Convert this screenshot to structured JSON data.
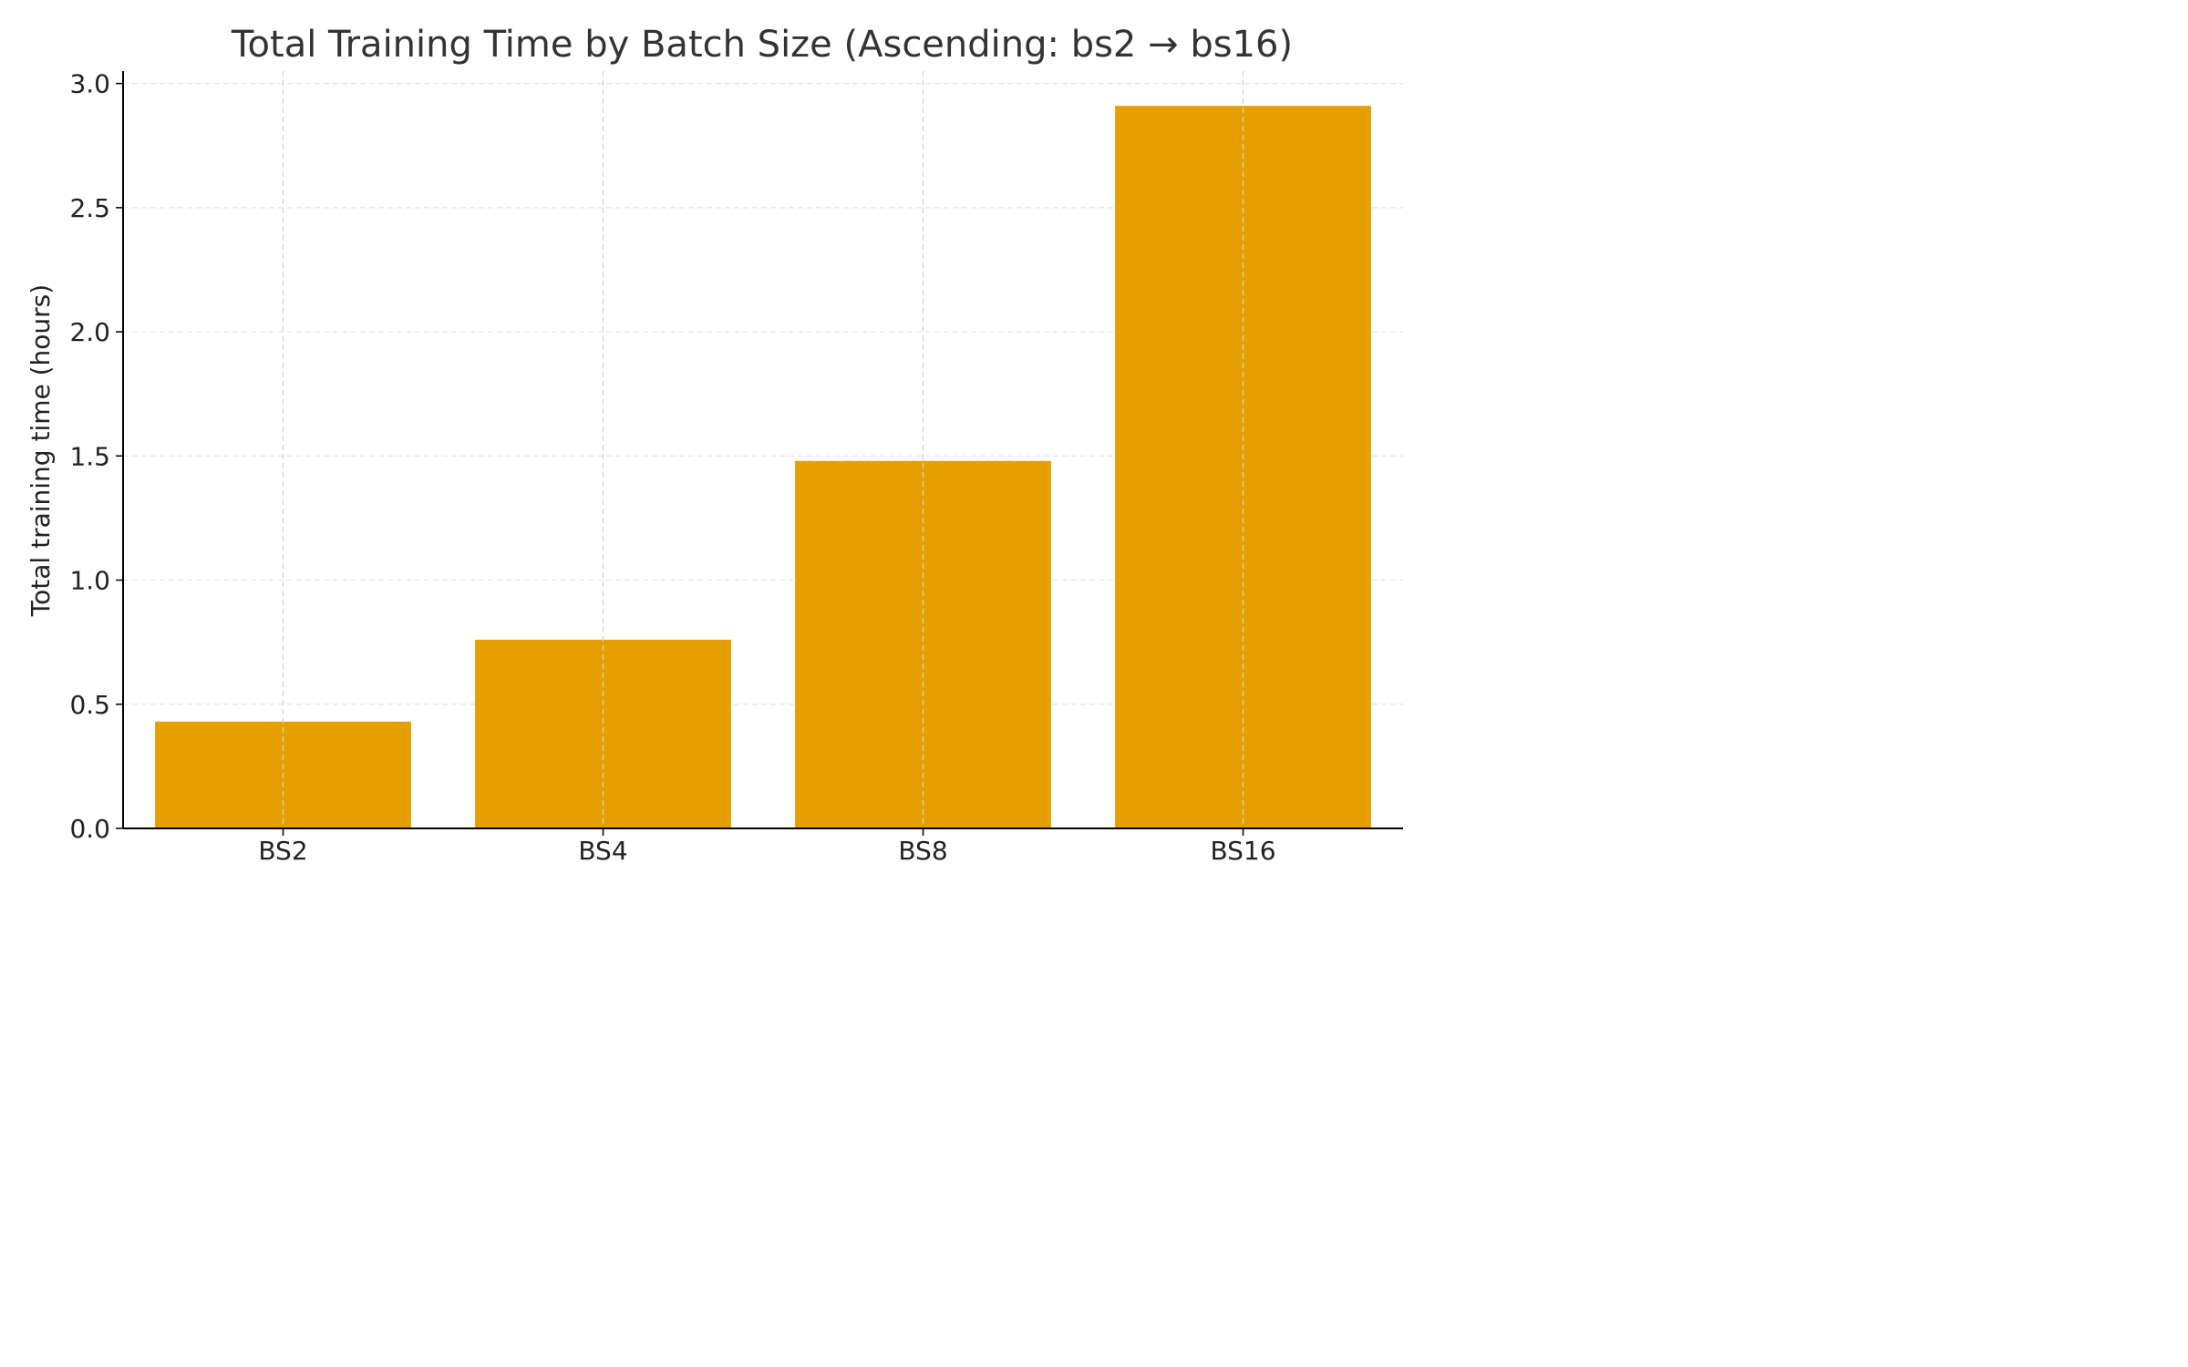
{
  "chart_data": {
    "type": "bar",
    "title": "Total Training Time by Batch Size (Ascending: bs2 → bs16)",
    "xlabel": "",
    "ylabel": "Total training time (hours)",
    "categories": [
      "BS2",
      "BS4",
      "BS8",
      "BS16"
    ],
    "values": [
      0.43,
      0.76,
      1.48,
      2.91
    ],
    "ylim": [
      0,
      3.05
    ],
    "yticks": [
      0.0,
      0.5,
      1.0,
      1.5,
      2.0,
      2.5,
      3.0
    ],
    "ytick_labels": [
      "0.0",
      "0.5",
      "1.0",
      "1.5",
      "2.0",
      "2.5",
      "3.0"
    ],
    "bar_color": "#E5A000",
    "grid": true,
    "legend": "none"
  }
}
